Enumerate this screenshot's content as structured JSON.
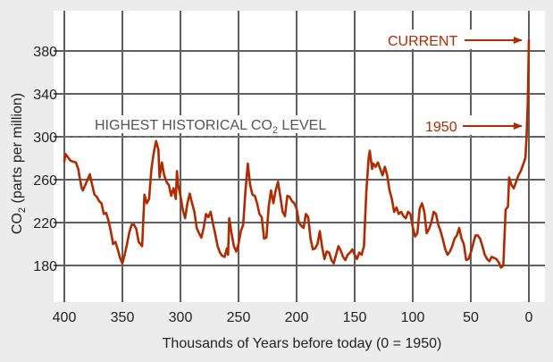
{
  "chart_data": {
    "type": "line",
    "title": "",
    "xlabel": "Thousands of Years before today (0 = 1950)",
    "ylabel": {
      "prefix": "CO",
      "sub": "2",
      "suffix": " (parts per million)"
    },
    "xlim": [
      400,
      0
    ],
    "ylim": [
      150,
      400
    ],
    "x_ticks": [
      400,
      350,
      300,
      250,
      200,
      150,
      100,
      50,
      0
    ],
    "y_ticks": [
      180,
      220,
      260,
      300,
      340,
      380
    ],
    "grid": true,
    "colors": {
      "series": "#b22a00",
      "grid": "#5f5f5f",
      "reference": "#777777",
      "annotation": "#b22a00",
      "background": "#ececec",
      "plot_background": "#ffffff"
    },
    "reference_line": {
      "y": 300,
      "label": {
        "prefix": "HIGHEST HISTORICAL CO",
        "sub": "2",
        "suffix": " LEVEL"
      }
    },
    "annotations": [
      {
        "text": "CURRENT",
        "x": 0,
        "y": 390
      },
      {
        "text": "1950",
        "x": 0,
        "y": 310
      }
    ],
    "series": [
      {
        "points": [
          [
            400,
            277
          ],
          [
            399,
            284
          ],
          [
            397,
            281
          ],
          [
            395,
            278
          ],
          [
            393,
            277
          ],
          [
            390,
            276
          ],
          [
            388,
            270
          ],
          [
            387,
            263
          ],
          [
            385,
            252
          ],
          [
            384,
            250
          ],
          [
            382,
            255
          ],
          [
            380,
            260
          ],
          [
            378,
            265
          ],
          [
            376,
            255
          ],
          [
            374,
            246
          ],
          [
            372,
            244
          ],
          [
            370,
            240
          ],
          [
            368,
            238
          ],
          [
            366,
            228
          ],
          [
            364,
            229
          ],
          [
            362,
            222
          ],
          [
            360,
            212
          ],
          [
            358,
            200
          ],
          [
            356,
            202
          ],
          [
            354,
            195
          ],
          [
            352,
            187
          ],
          [
            350,
            182
          ],
          [
            348,
            190
          ],
          [
            346,
            200
          ],
          [
            344,
            211
          ],
          [
            342,
            218
          ],
          [
            340,
            218
          ],
          [
            338,
            214
          ],
          [
            336,
            202
          ],
          [
            333,
            198
          ],
          [
            331,
            246
          ],
          [
            329,
            238
          ],
          [
            327,
            242
          ],
          [
            325,
            270
          ],
          [
            323,
            285
          ],
          [
            321,
            296
          ],
          [
            319,
            288
          ],
          [
            318,
            262
          ],
          [
            316,
            276
          ],
          [
            314,
            264
          ],
          [
            312,
            258
          ],
          [
            310,
            255
          ],
          [
            308,
            245
          ],
          [
            306,
            252
          ],
          [
            304,
            242
          ],
          [
            303,
            268
          ],
          [
            302,
            255
          ],
          [
            300,
            245
          ],
          [
            298,
            232
          ],
          [
            296,
            224
          ],
          [
            294,
            238
          ],
          [
            292,
            247
          ],
          [
            290,
            238
          ],
          [
            288,
            230
          ],
          [
            286,
            215
          ],
          [
            284,
            210
          ],
          [
            282,
            206
          ],
          [
            280,
            215
          ],
          [
            278,
            228
          ],
          [
            276,
            225
          ],
          [
            274,
            230
          ],
          [
            272,
            219
          ],
          [
            270,
            209
          ],
          [
            268,
            198
          ],
          [
            266,
            192
          ],
          [
            264,
            189
          ],
          [
            262,
            188
          ],
          [
            260,
            196
          ],
          [
            259,
            190
          ],
          [
            258,
            224
          ],
          [
            256,
            210
          ],
          [
            254,
            198
          ],
          [
            252,
            193
          ],
          [
            250,
            200
          ],
          [
            248,
            212
          ],
          [
            246,
            218
          ],
          [
            244,
            250
          ],
          [
            242,
            275
          ],
          [
            240,
            255
          ],
          [
            238,
            246
          ],
          [
            236,
            245
          ],
          [
            234,
            238
          ],
          [
            232,
            228
          ],
          [
            230,
            225
          ],
          [
            228,
            205
          ],
          [
            226,
            206
          ],
          [
            224,
            235
          ],
          [
            222,
            250
          ],
          [
            220,
            238
          ],
          [
            218,
            250
          ],
          [
            216,
            258
          ],
          [
            214,
            244
          ],
          [
            212,
            230
          ],
          [
            210,
            226
          ],
          [
            208,
            245
          ],
          [
            206,
            244
          ],
          [
            204,
            240
          ],
          [
            202,
            238
          ],
          [
            200,
            233
          ],
          [
            198,
            220
          ],
          [
            196,
            217
          ],
          [
            194,
            215
          ],
          [
            192,
            228
          ],
          [
            190,
            225
          ],
          [
            188,
            205
          ],
          [
            186,
            195
          ],
          [
            184,
            196
          ],
          [
            182,
            200
          ],
          [
            180,
            212
          ],
          [
            178,
            197
          ],
          [
            176,
            186
          ],
          [
            174,
            193
          ],
          [
            172,
            192
          ],
          [
            170,
            185
          ],
          [
            168,
            182
          ],
          [
            166,
            190
          ],
          [
            164,
            198
          ],
          [
            162,
            194
          ],
          [
            160,
            188
          ],
          [
            158,
            185
          ],
          [
            156,
            190
          ],
          [
            154,
            192
          ],
          [
            152,
            195
          ],
          [
            150,
            190
          ],
          [
            148,
            186
          ],
          [
            146,
            192
          ],
          [
            144,
            190
          ],
          [
            142,
            198
          ],
          [
            140,
            248
          ],
          [
            138,
            280
          ],
          [
            137,
            287
          ],
          [
            135,
            270
          ],
          [
            134,
            275
          ],
          [
            132,
            272
          ],
          [
            130,
            276
          ],
          [
            128,
            270
          ],
          [
            126,
            264
          ],
          [
            124,
            272
          ],
          [
            122,
            264
          ],
          [
            120,
            250
          ],
          [
            118,
            242
          ],
          [
            116,
            230
          ],
          [
            114,
            234
          ],
          [
            112,
            228
          ],
          [
            110,
            230
          ],
          [
            108,
            226
          ],
          [
            106,
            224
          ],
          [
            104,
            230
          ],
          [
            102,
            228
          ],
          [
            100,
            216
          ],
          [
            98,
            207
          ],
          [
            96,
            210
          ],
          [
            94,
            233
          ],
          [
            92,
            238
          ],
          [
            90,
            230
          ],
          [
            88,
            210
          ],
          [
            86,
            214
          ],
          [
            84,
            220
          ],
          [
            82,
            230
          ],
          [
            80,
            228
          ],
          [
            78,
            218
          ],
          [
            76,
            212
          ],
          [
            74,
            204
          ],
          [
            72,
            195
          ],
          [
            70,
            190
          ],
          [
            68,
            193
          ],
          [
            66,
            198
          ],
          [
            64,
            205
          ],
          [
            62,
            208
          ],
          [
            60,
            215
          ],
          [
            58,
            205
          ],
          [
            56,
            200
          ],
          [
            54,
            185
          ],
          [
            52,
            186
          ],
          [
            50,
            192
          ],
          [
            48,
            200
          ],
          [
            46,
            208
          ],
          [
            44,
            208
          ],
          [
            42,
            205
          ],
          [
            40,
            198
          ],
          [
            38,
            190
          ],
          [
            36,
            186
          ],
          [
            34,
            184
          ],
          [
            32,
            188
          ],
          [
            30,
            187
          ],
          [
            28,
            186
          ],
          [
            26,
            183
          ],
          [
            24,
            178
          ],
          [
            22,
            180
          ],
          [
            20,
            232
          ],
          [
            18,
            235
          ],
          [
            17,
            262
          ],
          [
            15,
            255
          ],
          [
            13,
            252
          ],
          [
            11,
            258
          ],
          [
            9,
            264
          ],
          [
            7,
            268
          ],
          [
            5,
            274
          ],
          [
            3,
            280
          ],
          [
            2,
            300
          ],
          [
            1,
            330
          ],
          [
            0.5,
            360
          ],
          [
            0,
            390
          ]
        ]
      }
    ]
  }
}
